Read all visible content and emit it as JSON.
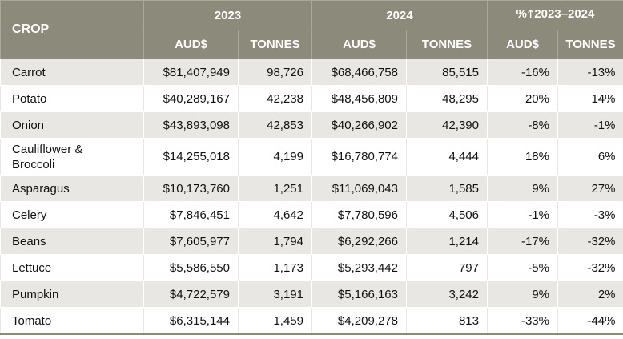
{
  "header": {
    "crop_label": "CROP",
    "year_2023": "2023",
    "year_2024": "2024",
    "change_prefix": "%",
    "change_icon": "arrow-up-icon",
    "change_suffix": "2023–2024",
    "aud": "AUD$",
    "tonnes": "TONNES"
  },
  "colors": {
    "header_bg": "#8b8a7b",
    "stripe_bg": "#e8e7e4"
  },
  "rows": [
    {
      "crop": "Carrot",
      "aud_2023": "$81,407,949",
      "t_2023": "98,726",
      "aud_2024": "$68,466,758",
      "t_2024": "85,515",
      "pct_aud": "-16%",
      "pct_t": "-13%"
    },
    {
      "crop": "Potato",
      "aud_2023": "$40,289,167",
      "t_2023": "42,238",
      "aud_2024": "$48,456,809",
      "t_2024": "48,295",
      "pct_aud": "20%",
      "pct_t": "14%"
    },
    {
      "crop": "Onion",
      "aud_2023": "$43,893,098",
      "t_2023": "42,853",
      "aud_2024": "$40,266,902",
      "t_2024": "42,390",
      "pct_aud": "-8%",
      "pct_t": "-1%"
    },
    {
      "crop_line1": "Cauliflower &",
      "crop_line2": "Broccoli",
      "aud_2023": "$14,255,018",
      "t_2023": "4,199",
      "aud_2024": "$16,780,774",
      "t_2024": "4,444",
      "pct_aud": "18%",
      "pct_t": "6%"
    },
    {
      "crop": "Asparagus",
      "aud_2023": "$10,173,760",
      "t_2023": "1,251",
      "aud_2024": "$11,069,043",
      "t_2024": "1,585",
      "pct_aud": "9%",
      "pct_t": "27%"
    },
    {
      "crop": "Celery",
      "aud_2023": "$7,846,451",
      "t_2023": "4,642",
      "aud_2024": "$7,780,596",
      "t_2024": "4,506",
      "pct_aud": "-1%",
      "pct_t": "-3%"
    },
    {
      "crop": "Beans",
      "aud_2023": "$7,605,977",
      "t_2023": "1,794",
      "aud_2024": "$6,292,266",
      "t_2024": "1,214",
      "pct_aud": "-17%",
      "pct_t": "-32%"
    },
    {
      "crop": "Lettuce",
      "aud_2023": "$5,586,550",
      "t_2023": "1,173",
      "aud_2024": "$5,293,442",
      "t_2024": "797",
      "pct_aud": "-5%",
      "pct_t": "-32%"
    },
    {
      "crop": "Pumpkin",
      "aud_2023": "$4,722,579",
      "t_2023": "3,191",
      "aud_2024": "$5,166,163",
      "t_2024": "3,242",
      "pct_aud": "9%",
      "pct_t": "2%"
    },
    {
      "crop": "Tomato",
      "aud_2023": "$6,315,144",
      "t_2023": "1,459",
      "aud_2024": "$4,209,278",
      "t_2024": "813",
      "pct_aud": "-33%",
      "pct_t": "-44%"
    }
  ]
}
